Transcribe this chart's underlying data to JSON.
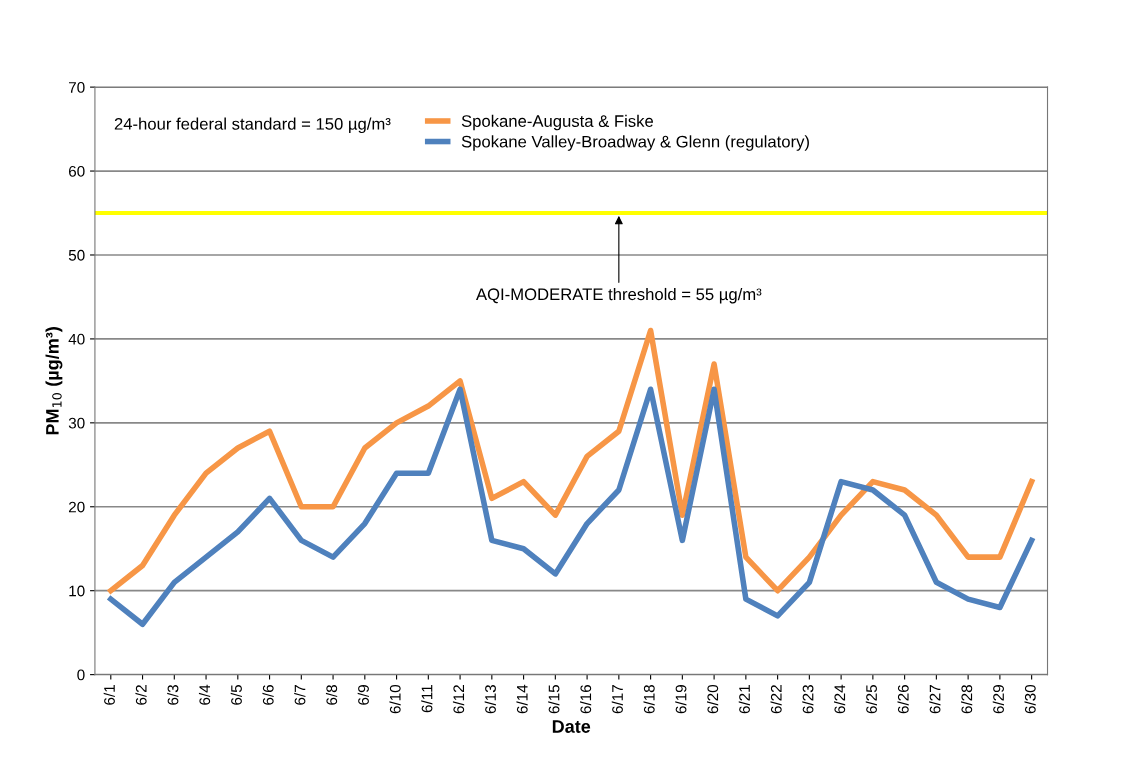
{
  "chart_data": {
    "type": "line",
    "categories": [
      "6/1",
      "6/2",
      "6/3",
      "6/4",
      "6/5",
      "6/6",
      "6/7",
      "6/8",
      "6/9",
      "6/10",
      "6/11",
      "6/12",
      "6/13",
      "6/14",
      "6/15",
      "6/16",
      "6/17",
      "6/18",
      "6/19",
      "6/20",
      "6/21",
      "6/22",
      "6/23",
      "6/24",
      "6/25",
      "6/26",
      "6/27",
      "6/28",
      "6/29",
      "6/30"
    ],
    "series": [
      {
        "name": "Spokane-Augusta & Fiske",
        "color": "#f79646",
        "values": [
          10,
          13,
          19,
          24,
          27,
          29,
          20,
          20,
          27,
          30,
          32,
          35,
          21,
          23,
          19,
          26,
          29,
          41,
          19,
          37,
          14,
          10,
          14,
          19,
          23,
          22,
          19,
          14,
          14,
          23
        ]
      },
      {
        "name": "Spokane Valley-Broadway & Glenn (regulatory)",
        "color": "#4f81bd",
        "values": [
          9,
          6,
          11,
          14,
          17,
          21,
          16,
          14,
          18,
          24,
          24,
          34,
          16,
          15,
          12,
          18,
          22,
          34,
          16,
          34,
          9,
          7,
          11,
          23,
          22,
          19,
          11,
          9,
          8,
          16
        ]
      }
    ],
    "xlabel": "Date",
    "ylabel": "PM$_{10}$ (µg/m³)",
    "ylim": [
      0,
      70
    ],
    "yticks": [
      0,
      10,
      20,
      30,
      40,
      50,
      60,
      70
    ],
    "ref_lines": [
      {
        "axis": "y",
        "value": 55,
        "label": "AQI-MODERATE threshold = 55 µg/m³",
        "color": "#ffff00"
      }
    ],
    "annotations": [
      "24-hour federal standard = 150 µg/m³"
    ],
    "grid": "y",
    "legend": "top",
    "marker": "none",
    "line_style": "solid"
  }
}
